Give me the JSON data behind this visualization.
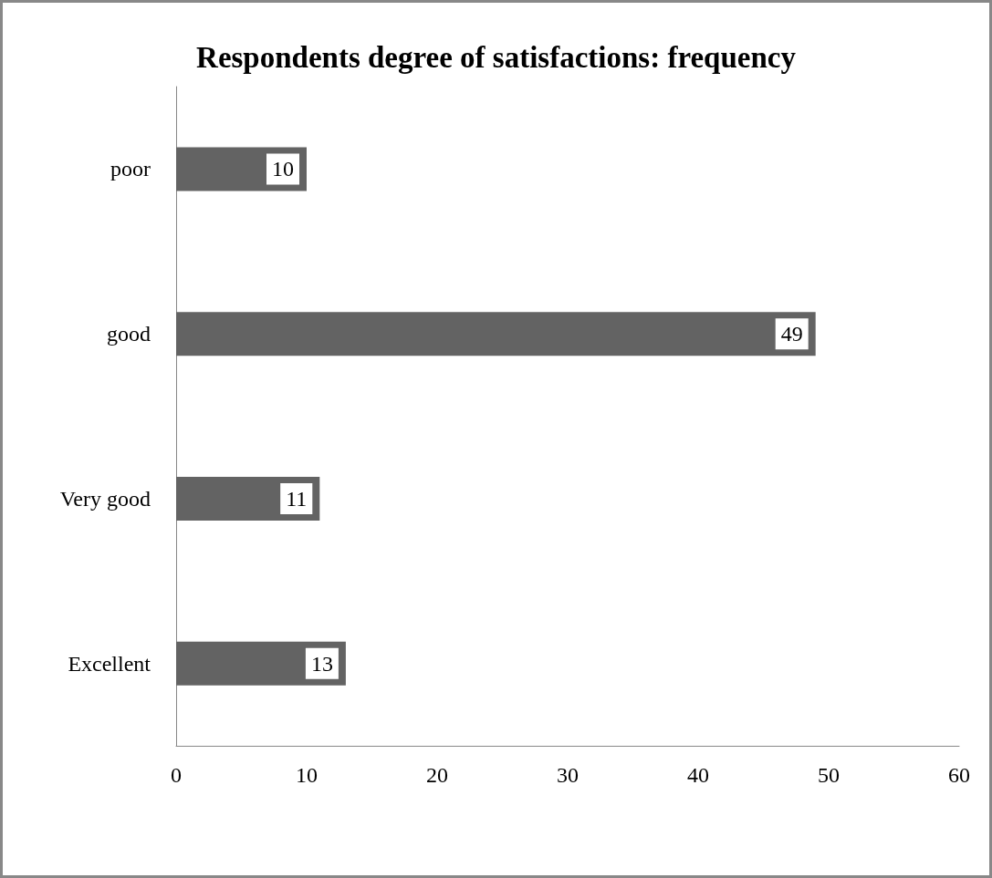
{
  "chart_data": {
    "type": "bar",
    "orientation": "horizontal",
    "title": "Respondents degree of satisfactions: frequency",
    "categories": [
      "poor",
      "good",
      "Very good",
      "Excellent"
    ],
    "values": [
      10,
      49,
      11,
      13
    ],
    "color": "#636363",
    "xlim": [
      0,
      60
    ],
    "xticks": [
      0,
      10,
      20,
      30,
      40,
      50,
      60
    ],
    "grid": false,
    "data_labels": true
  }
}
